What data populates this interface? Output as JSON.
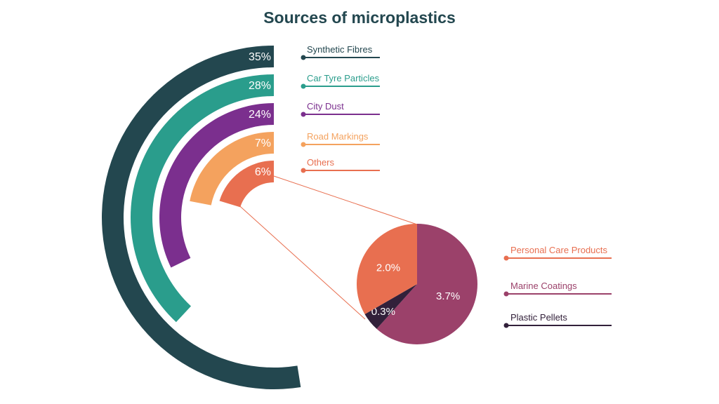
{
  "chart_data": [
    {
      "type": "radial-bar",
      "title": "Sources of microplastics",
      "categories": [
        "Synthetic Fibres",
        "Car Tyre Particles",
        "City Dust",
        "Road Markings",
        "Others"
      ],
      "values": [
        35,
        28,
        24,
        7,
        6
      ],
      "labels": [
        "35%",
        "28%",
        "24%",
        "7%",
        "6%"
      ],
      "colors": [
        "#23474f",
        "#2a9d8c",
        "#7b2f8e",
        "#f4a25e",
        "#e86f50"
      ],
      "legend": "right"
    },
    {
      "type": "pie",
      "note_parent": "Others",
      "categories": [
        "Marine Coatings",
        "Plastic Pellets",
        "Personal Care Products"
      ],
      "values": [
        3.7,
        0.3,
        2.0
      ],
      "labels": [
        "3.7%",
        "0.3%",
        "2.0%"
      ],
      "colors": [
        "#9b416a",
        "#32203a",
        "#e86f50"
      ],
      "legend_order": [
        "Personal Care Products",
        "Marine Coatings",
        "Plastic Pellets"
      ],
      "legend": "right"
    }
  ]
}
